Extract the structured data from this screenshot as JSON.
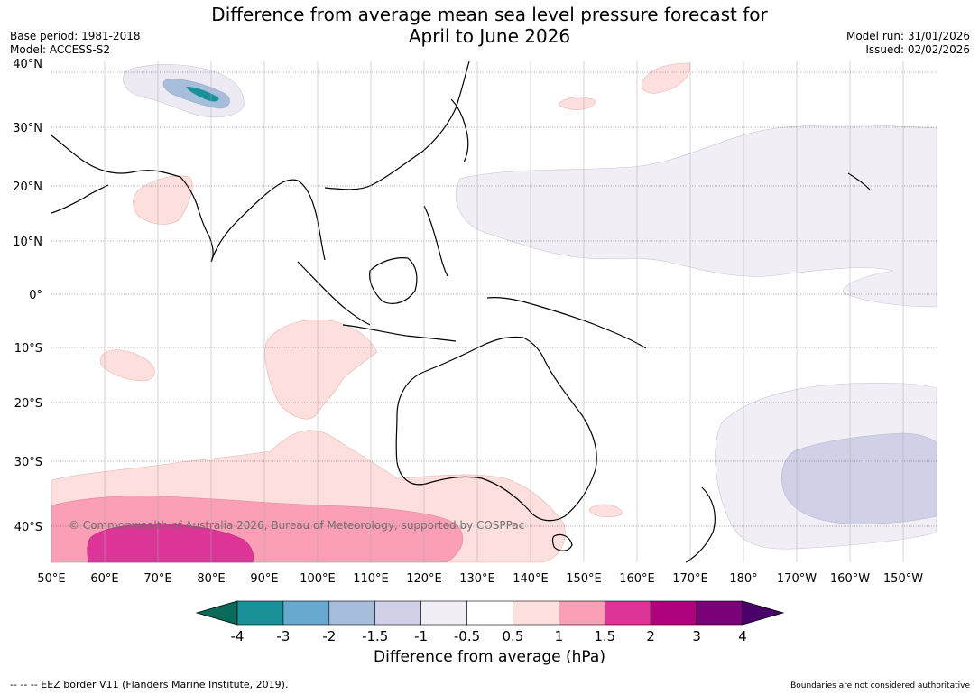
{
  "header": {
    "title_line1": "Difference from average mean sea level pressure forecast for",
    "title_line2": "April to June 2026",
    "base_period": "Base period: 1981-2018",
    "model": "Model: ACCESS-S2",
    "model_run": "Model run: 31/01/2026",
    "issued": "Issued: 02/02/2026"
  },
  "map": {
    "copyright": "© Commonwealth of Australia 2026, Bureau of Meteorology, supported by COSPPac",
    "lat_labels": [
      "40°N",
      "30°N",
      "20°N",
      "10°N",
      "0°",
      "10°S",
      "20°S",
      "30°S",
      "40°S"
    ],
    "lon_labels": [
      "50°E",
      "60°E",
      "70°E",
      "80°E",
      "90°E",
      "100°E",
      "110°E",
      "120°E",
      "130°E",
      "140°E",
      "150°E",
      "160°E",
      "170°E",
      "180°",
      "170°W",
      "160°W",
      "150°W"
    ]
  },
  "colorbar": {
    "title": "Difference from average (hPa)",
    "tick_labels": [
      "-4",
      "-3",
      "-2",
      "-1.5",
      "-1",
      "-0.5",
      "0.5",
      "1",
      "1.5",
      "2",
      "3",
      "4"
    ],
    "colors": {
      "below_min": "#0b6b5a",
      "bins": [
        "#1a9099",
        "#67a9cf",
        "#a6bddb",
        "#d0d1e6",
        "#f1eef6",
        "#ffffff",
        "#fde0dd",
        "#fa9fb5",
        "#dd3497",
        "#ae017e",
        "#7a0177"
      ],
      "above_max": "#49006a"
    }
  },
  "footer": {
    "eez_note": "--  --  -- EEZ border V11 (Flanders Marine Institute, 2019).",
    "disclaimer": "Boundaries are not considered authoritative"
  }
}
